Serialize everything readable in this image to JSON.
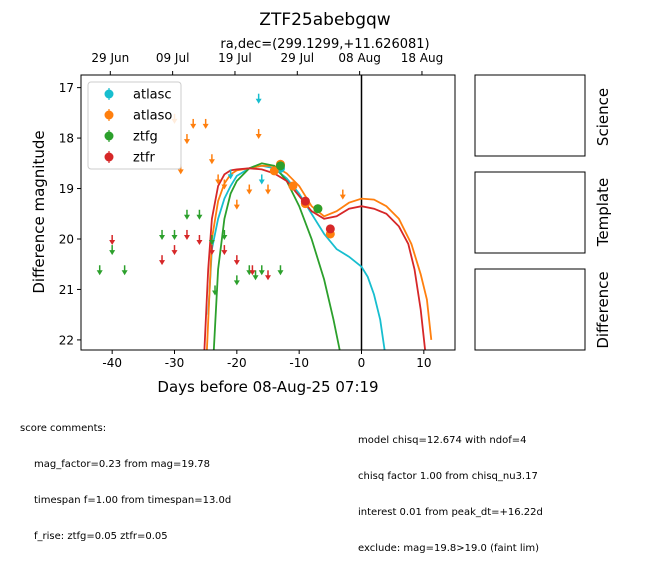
{
  "chart_data": {
    "type": "scatter",
    "title": "ZTF25abebgqw",
    "subtitle": "ra,dec=(299.1299,+11.626081)",
    "xlabel": "Days before 08-Aug-25 07:19",
    "ylabel": "Difference magnitude",
    "xlim": [
      -45,
      15
    ],
    "ylim": [
      22.2,
      16.75
    ],
    "x_ticks": [
      -40,
      -30,
      -20,
      -10,
      0,
      10
    ],
    "y_ticks": [
      17,
      18,
      19,
      20,
      21,
      22
    ],
    "top_axis_ticks": [
      {
        "x": -40.3,
        "label": "29 Jun"
      },
      {
        "x": -30.3,
        "label": "09 Jul"
      },
      {
        "x": -20.3,
        "label": "19 Jul"
      },
      {
        "x": -10.3,
        "label": "29 Jul"
      },
      {
        "x": -0.3,
        "label": "08 Aug"
      },
      {
        "x": 9.7,
        "label": "18 Aug"
      }
    ],
    "vline_x": 0,
    "legend_position": "upper-left",
    "series": [
      {
        "name": "atlasc",
        "color": "#17becf",
        "detections": [
          {
            "x": -13,
            "y": 18.6
          }
        ],
        "upper_limits": [
          {
            "x": -16.5,
            "y": 17.2
          },
          {
            "x": -16,
            "y": 18.8
          },
          {
            "x": -21,
            "y": 18.7
          }
        ],
        "model": [
          [
            -24.6,
            21.5
          ],
          [
            -24,
            20.2
          ],
          [
            -23,
            19.6
          ],
          [
            -22,
            19.2
          ],
          [
            -21,
            18.95
          ],
          [
            -20,
            18.75
          ],
          [
            -18,
            18.6
          ],
          [
            -16,
            18.55
          ],
          [
            -14,
            18.6
          ],
          [
            -12,
            18.8
          ],
          [
            -10,
            19.1
          ],
          [
            -8,
            19.5
          ],
          [
            -6,
            19.9
          ],
          [
            -4,
            20.2
          ],
          [
            -2,
            20.35
          ],
          [
            0,
            20.55
          ],
          [
            1,
            20.75
          ],
          [
            2,
            21.1
          ],
          [
            3,
            21.6
          ],
          [
            3.7,
            22.2
          ]
        ]
      },
      {
        "name": "atlaso",
        "color": "#ff7f0e",
        "detections": [
          {
            "x": -14,
            "y": 18.65
          },
          {
            "x": -13,
            "y": 18.52
          },
          {
            "x": -11,
            "y": 18.95
          },
          {
            "x": -9,
            "y": 19.3
          },
          {
            "x": -7,
            "y": 19.4
          },
          {
            "x": -5,
            "y": 19.9
          }
        ],
        "upper_limits": [
          {
            "x": -30,
            "y": 17.6
          },
          {
            "x": -29,
            "y": 18.6
          },
          {
            "x": -28,
            "y": 18.0
          },
          {
            "x": -27,
            "y": 17.7
          },
          {
            "x": -25,
            "y": 17.7
          },
          {
            "x": -24,
            "y": 18.4
          },
          {
            "x": -23,
            "y": 18.8
          },
          {
            "x": -22,
            "y": 18.9
          },
          {
            "x": -20,
            "y": 19.3
          },
          {
            "x": -18,
            "y": 19.0
          },
          {
            "x": -16.5,
            "y": 17.9
          },
          {
            "x": -15,
            "y": 19.0
          },
          {
            "x": -3,
            "y": 19.1
          }
        ],
        "model": [
          [
            -24.8,
            22.2
          ],
          [
            -24,
            20.0
          ],
          [
            -23,
            19.25
          ],
          [
            -22,
            18.9
          ],
          [
            -21,
            18.72
          ],
          [
            -20,
            18.64
          ],
          [
            -18,
            18.6
          ],
          [
            -16,
            18.55
          ],
          [
            -14,
            18.55
          ],
          [
            -12,
            18.7
          ],
          [
            -10,
            18.95
          ],
          [
            -8,
            19.35
          ],
          [
            -6,
            19.55
          ],
          [
            -4,
            19.45
          ],
          [
            -2,
            19.28
          ],
          [
            0,
            19.2
          ],
          [
            2,
            19.22
          ],
          [
            4,
            19.35
          ],
          [
            6,
            19.6
          ],
          [
            8,
            20.1
          ],
          [
            9.5,
            20.7
          ],
          [
            10.5,
            21.2
          ],
          [
            11.2,
            22.0
          ]
        ]
      },
      {
        "name": "ztfg",
        "color": "#2ca02c",
        "detections": [
          {
            "x": -13,
            "y": 18.55
          },
          {
            "x": -7,
            "y": 19.4
          }
        ],
        "upper_limits": [
          {
            "x": -42,
            "y": 20.6
          },
          {
            "x": -40,
            "y": 20.2
          },
          {
            "x": -38,
            "y": 20.6
          },
          {
            "x": -32,
            "y": 19.9
          },
          {
            "x": -30,
            "y": 19.9
          },
          {
            "x": -28,
            "y": 19.5
          },
          {
            "x": -26,
            "y": 19.5
          },
          {
            "x": -24,
            "y": 20.0
          },
          {
            "x": -23.5,
            "y": 21.0
          },
          {
            "x": -22,
            "y": 19.9
          },
          {
            "x": -20,
            "y": 20.8
          },
          {
            "x": -18,
            "y": 20.6
          },
          {
            "x": -17,
            "y": 20.7
          },
          {
            "x": -16,
            "y": 20.6
          },
          {
            "x": -13,
            "y": 20.6
          }
        ],
        "model": [
          [
            -23.7,
            22.2
          ],
          [
            -23,
            20.6
          ],
          [
            -22,
            19.6
          ],
          [
            -21,
            19.1
          ],
          [
            -20,
            18.85
          ],
          [
            -18,
            18.6
          ],
          [
            -16,
            18.5
          ],
          [
            -14,
            18.55
          ],
          [
            -12,
            18.85
          ],
          [
            -10,
            19.35
          ],
          [
            -8,
            20.0
          ],
          [
            -6,
            20.8
          ],
          [
            -4.5,
            21.6
          ],
          [
            -3.5,
            22.2
          ]
        ]
      },
      {
        "name": "ztfr",
        "color": "#d62728",
        "detections": [
          {
            "x": -9,
            "y": 19.25
          },
          {
            "x": -5,
            "y": 19.8
          }
        ],
        "upper_limits": [
          {
            "x": -40,
            "y": 20.0
          },
          {
            "x": -32,
            "y": 20.4
          },
          {
            "x": -30,
            "y": 20.2
          },
          {
            "x": -28,
            "y": 19.9
          },
          {
            "x": -26,
            "y": 20.0
          },
          {
            "x": -24,
            "y": 20.2
          },
          {
            "x": -22,
            "y": 20.2
          },
          {
            "x": -20,
            "y": 20.4
          },
          {
            "x": -17.5,
            "y": 20.6
          },
          {
            "x": -15,
            "y": 20.7
          }
        ],
        "model": [
          [
            -25.2,
            22.2
          ],
          [
            -24.6,
            20.6
          ],
          [
            -24,
            19.6
          ],
          [
            -23,
            18.95
          ],
          [
            -22,
            18.72
          ],
          [
            -21,
            18.64
          ],
          [
            -20,
            18.62
          ],
          [
            -18,
            18.6
          ],
          [
            -16,
            18.62
          ],
          [
            -14,
            18.7
          ],
          [
            -12,
            18.85
          ],
          [
            -10,
            19.15
          ],
          [
            -8,
            19.45
          ],
          [
            -6,
            19.6
          ],
          [
            -4,
            19.55
          ],
          [
            -2,
            19.4
          ],
          [
            0,
            19.35
          ],
          [
            2,
            19.4
          ],
          [
            4,
            19.5
          ],
          [
            6,
            19.75
          ],
          [
            7.5,
            20.1
          ],
          [
            8.5,
            20.6
          ],
          [
            9.5,
            21.4
          ],
          [
            10.2,
            22.2
          ]
        ]
      }
    ]
  },
  "panels": {
    "labels": [
      "Science",
      "Template",
      "Difference"
    ]
  },
  "footer": {
    "left": {
      "heading": "score comments:",
      "lines": [
        "mag_factor=0.23 from mag=19.78",
        "timespan f=1.00 from timespan=13.0d",
        "f_rise: ztfg=0.05 ztfr=0.05"
      ]
    },
    "right": {
      "lines": [
        "model chisq=12.674 with ndof=4",
        "chisq factor 1.00 from chisq_nu3.17",
        "interest 0.01 from peak_dt=+16.22d",
        "exclude: mag=19.8>19.0 (faint lim)"
      ]
    }
  }
}
